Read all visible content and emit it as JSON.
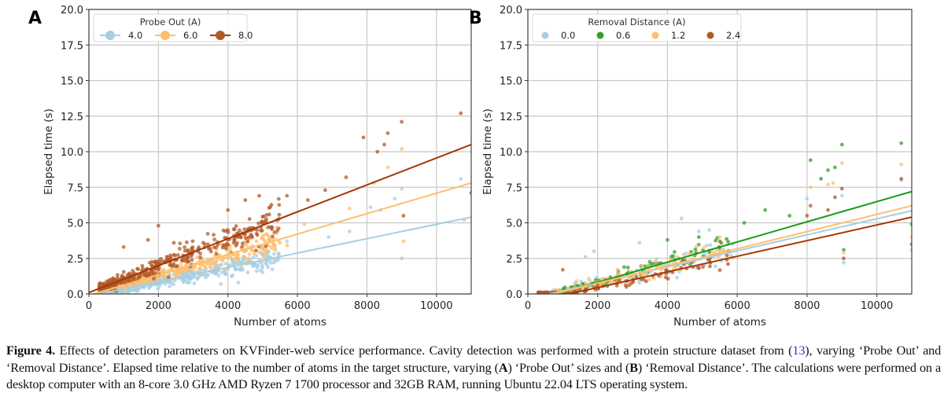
{
  "chart_data": [
    {
      "type": "scatter",
      "panel_label": "A",
      "title": "",
      "xlabel": "Number of atoms",
      "ylabel": "Elapsed time (s)",
      "xlim": [
        0,
        11000
      ],
      "ylim": [
        0,
        20
      ],
      "xticks": [
        "0",
        "2000",
        "4000",
        "6000",
        "8000",
        "10000"
      ],
      "xtick_values": [
        0,
        2000,
        4000,
        6000,
        8000,
        10000
      ],
      "yticks": [
        "0.0",
        "2.5",
        "5.0",
        "7.5",
        "10.0",
        "12.5",
        "15.0",
        "17.5",
        "20.0"
      ],
      "ytick_values": [
        0,
        2.5,
        5,
        7.5,
        10,
        12.5,
        15,
        17.5,
        20
      ],
      "grid": true,
      "legend": {
        "title": "Probe Out (A)",
        "placement": "top-left",
        "ncol": 3
      },
      "series": [
        {
          "name": "4.0",
          "color": "#a6cee3",
          "trend": {
            "x": [
              0,
              11000
            ],
            "y": [
              -0.15,
              5.4
            ]
          },
          "points": [
            [
              9000,
              2.5
            ],
            [
              10700,
              8.1
            ],
            [
              8100,
              6.1
            ],
            [
              8800,
              6.7
            ],
            [
              7500,
              4.4
            ],
            [
              6900,
              4.0
            ],
            [
              5700,
              3.7
            ],
            [
              5000,
              3.1
            ],
            [
              4300,
              0.8
            ],
            [
              3800,
              0.7
            ],
            [
              9000,
              7.4
            ],
            [
              8400,
              5.9
            ]
          ]
        },
        {
          "name": "6.0",
          "color": "#fdbf6f",
          "trend": {
            "x": [
              0,
              11000
            ],
            "y": [
              -0.1,
              7.8
            ]
          },
          "points": [
            [
              8600,
              8.9
            ],
            [
              9000,
              10.2
            ],
            [
              8200,
              7.8
            ],
            [
              7500,
              6.0
            ],
            [
              9050,
              3.7
            ],
            [
              6200,
              4.9
            ],
            [
              5700,
              3.4
            ],
            [
              4600,
              3.9
            ],
            [
              5500,
              3.6
            ],
            [
              10800,
              5.2
            ]
          ]
        },
        {
          "name": "8.0",
          "color": "#b15928",
          "trend": {
            "x": [
              0,
              11000
            ],
            "y": [
              0.1,
              10.5
            ]
          },
          "points": [
            [
              10700,
              12.7
            ],
            [
              9000,
              12.1
            ],
            [
              8600,
              11.3
            ],
            [
              7900,
              11.0
            ],
            [
              8500,
              10.5
            ],
            [
              8300,
              10.0
            ],
            [
              7400,
              8.2
            ],
            [
              6800,
              7.3
            ],
            [
              6300,
              6.6
            ],
            [
              5700,
              6.9
            ],
            [
              4900,
              6.9
            ],
            [
              4500,
              6.6
            ],
            [
              4000,
              5.9
            ],
            [
              2000,
              4.8
            ],
            [
              1000,
              3.3
            ],
            [
              1700,
              3.8
            ],
            [
              9050,
              5.5
            ],
            [
              11000,
              7.1
            ]
          ]
        }
      ]
    },
    {
      "type": "scatter",
      "panel_label": "B",
      "title": "",
      "xlabel": "Number of atoms",
      "ylabel": "Elapsed time (s)",
      "xlim": [
        0,
        11000
      ],
      "ylim": [
        0,
        20
      ],
      "xticks": [
        "0",
        "2000",
        "4000",
        "6000",
        "8000",
        "10000"
      ],
      "xtick_values": [
        0,
        2000,
        4000,
        6000,
        8000,
        10000
      ],
      "yticks": [
        "0.0",
        "2.5",
        "5.0",
        "7.5",
        "10.0",
        "12.5",
        "15.0",
        "17.5",
        "20.0"
      ],
      "ytick_values": [
        0,
        2.5,
        5,
        7.5,
        10,
        12.5,
        15,
        17.5,
        20
      ],
      "grid": true,
      "legend": {
        "title": "Removal Distance (A)",
        "placement": "top-left",
        "ncol": 4
      },
      "series": [
        {
          "name": "0.0",
          "color": "#a6cee3",
          "trend": {
            "x": [
              0,
              11000
            ],
            "y": [
              -0.35,
              5.85
            ]
          },
          "points": [
            [
              4400,
              5.3
            ],
            [
              5200,
              4.5
            ],
            [
              4900,
              4.4
            ],
            [
              1900,
              3.0
            ],
            [
              1650,
              2.6
            ],
            [
              3200,
              3.6
            ],
            [
              10700,
              8.0
            ],
            [
              9000,
              6.9
            ],
            [
              8000,
              6.7
            ],
            [
              9050,
              2.2
            ],
            [
              11000,
              3.1
            ]
          ]
        },
        {
          "name": "0.6",
          "color": "#33a02c",
          "trend": {
            "x": [
              0,
              11000
            ],
            "y": [
              -0.6,
              7.2
            ]
          },
          "points": [
            [
              9000,
              10.5
            ],
            [
              8100,
              9.4
            ],
            [
              10700,
              10.6
            ],
            [
              8400,
              8.1
            ],
            [
              8600,
              8.7
            ],
            [
              8800,
              8.9
            ],
            [
              6800,
              5.9
            ],
            [
              7500,
              5.5
            ],
            [
              6200,
              5.0
            ],
            [
              4000,
              3.8
            ],
            [
              4900,
              4.0
            ],
            [
              9050,
              3.1
            ],
            [
              11000,
              4.9
            ]
          ]
        },
        {
          "name": "1.2",
          "color": "#fdbf6f",
          "trend": {
            "x": [
              0,
              11000
            ],
            "y": [
              -0.45,
              6.2
            ]
          },
          "points": [
            [
              9000,
              9.2
            ],
            [
              10700,
              9.1
            ],
            [
              8100,
              7.5
            ],
            [
              8600,
              7.7
            ],
            [
              8750,
              7.8
            ],
            [
              5500,
              4.0
            ],
            [
              9050,
              2.9
            ],
            [
              11000,
              4.0
            ]
          ]
        },
        {
          "name": "2.4",
          "color": "#b15928",
          "trend": {
            "x": [
              0,
              11000
            ],
            "y": [
              -0.65,
              5.4
            ]
          },
          "points": [
            [
              8100,
              6.2
            ],
            [
              8600,
              5.9
            ],
            [
              8800,
              6.8
            ],
            [
              8000,
              5.5
            ],
            [
              9000,
              7.4
            ],
            [
              10700,
              8.1
            ],
            [
              9050,
              2.5
            ],
            [
              11000,
              3.5
            ],
            [
              5500,
              3.7
            ],
            [
              1000,
              1.7
            ]
          ]
        }
      ]
    }
  ],
  "caption": {
    "label": "Figure 4.",
    "part1": " Effects of detection parameters on KVFinder-web service performance. Cavity detection was performed with a protein structure dataset from (",
    "ref": "13",
    "part2": "), varying ‘Probe Out’ and ‘Removal Distance’. Elapsed time relative to the number of atoms in the target structure, varying (",
    "a": "A",
    "part3": ") ‘Probe Out’ sizes and (",
    "b": "B",
    "part4": ") ‘Removal Distance’. The calculations were performed on a desktop computer with an 8-core 3.0 GHz AMD Ryzen 7 1700 processor and 32GB RAM, running Ubuntu 22.04 LTS operating system."
  }
}
